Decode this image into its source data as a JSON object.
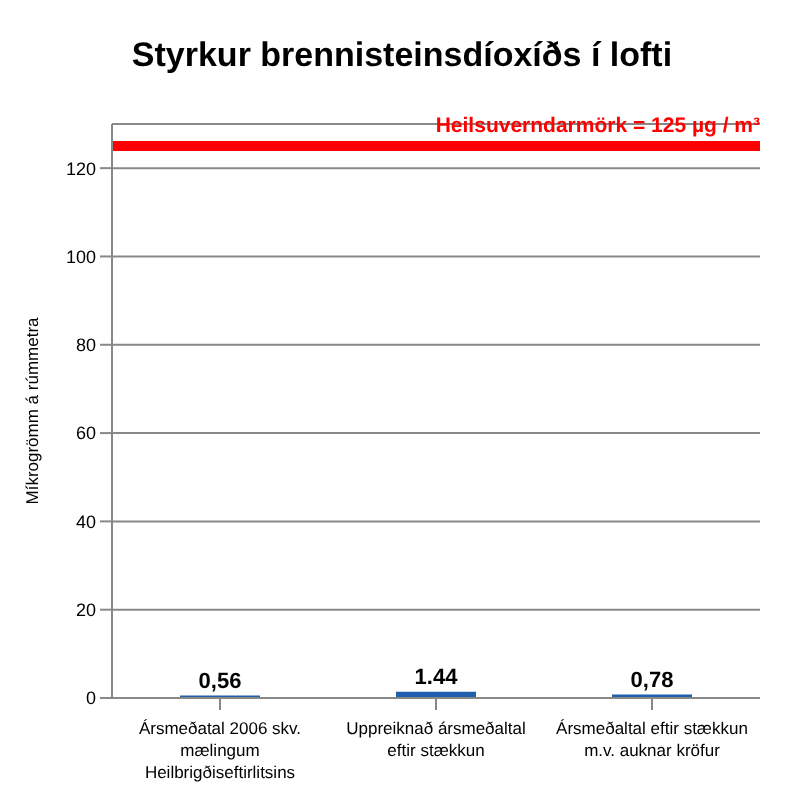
{
  "chart_data": {
    "type": "bar",
    "title": "Styrkur brennisteinsdíoxíðs í lofti",
    "ylabel": "Míkrogrömm á rúmmetra",
    "categories": [
      "Ársmeðatal 2006 skv. mælingum Heilbrigðiseftirlitsins",
      "Uppreiknað ársmeðaltal eftir stækkun",
      "Ársmeðaltal eftir stækkun m.v. auknar kröfur"
    ],
    "values": [
      0.56,
      1.44,
      0.78
    ],
    "value_labels": [
      "0,56",
      "1.44",
      "0,78"
    ],
    "color": "#1f5fae",
    "ylim": [
      0,
      130
    ],
    "yticks": [
      0,
      20,
      40,
      60,
      80,
      100,
      120
    ],
    "grid": "y",
    "ref_lines": [
      {
        "axis": "y",
        "value": 125,
        "label": "Heilsuverndarmörk = 125 µg / m³",
        "color": "#ff0000"
      }
    ]
  }
}
